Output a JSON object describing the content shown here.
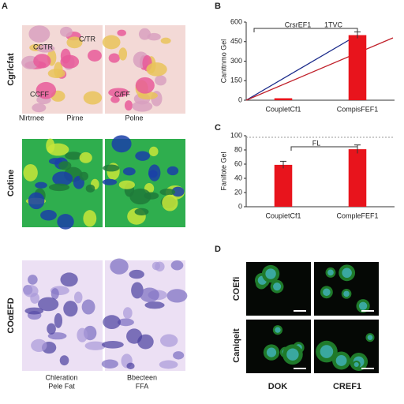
{
  "panels": {
    "a": "A",
    "b": "B",
    "c": "C",
    "d": "D"
  },
  "panel_a": {
    "rows": [
      "Cgrlcfat",
      "Cotine",
      "COαEFD"
    ],
    "image_labels": [
      "CCTR",
      "C/TR",
      "CCFF",
      "C/FF"
    ],
    "top_captions": [
      "Nlrtrnee",
      "Pirne",
      "Polne"
    ],
    "bottom_captions": [
      "Chleration",
      "Pele Fat",
      "Bbecteen",
      "FFA"
    ]
  },
  "panel_d": {
    "rows": [
      "COEfi",
      "Caniqeit"
    ],
    "columns": [
      "DOK",
      "CREF1"
    ]
  },
  "chart_data": [
    {
      "type": "bar",
      "annotations": [
        "CrsrEF1",
        "1TVC"
      ],
      "y_label": "Canttnmo Gel",
      "categories": [
        "CoupletCf1",
        "CompisFEF1"
      ],
      "values": [
        15,
        500
      ],
      "errors": [
        null,
        25
      ],
      "color": "#e8141c",
      "ylim": [
        0,
        600
      ],
      "yticks": [
        0,
        150,
        300,
        450,
        600
      ]
    },
    {
      "type": "bar",
      "annotations": [
        "FL"
      ],
      "y_label": "Fanifote Gel",
      "categories": [
        "CoupietCf1",
        "CompleFEF1"
      ],
      "values": [
        59,
        81
      ],
      "errors": [
        5,
        6
      ],
      "color": "#e8141c",
      "ylim": [
        0,
        100
      ],
      "yticks": [
        0,
        20,
        40,
        60,
        80,
        100
      ]
    }
  ]
}
